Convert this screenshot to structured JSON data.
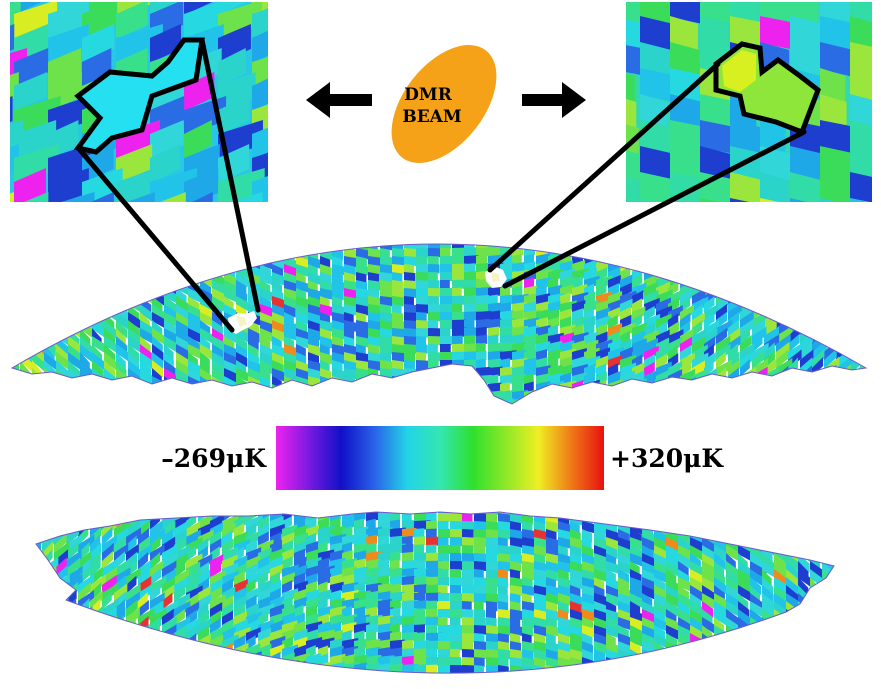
{
  "beam": {
    "label_line1": "DMR",
    "label_line2": "BEAM",
    "color": "#f5a218"
  },
  "colorbar": {
    "min_label": "–269μK",
    "max_label": "+320μK",
    "stops": [
      "#ee22ee",
      "#7a1ae0",
      "#1010c8",
      "#2a62e8",
      "#22d4e6",
      "#34e6b2",
      "#2ee02e",
      "#8ee828",
      "#f0ee22",
      "#f07a18",
      "#e81010"
    ]
  },
  "map_palette": [
    "#2a6ce4",
    "#1e3ed0",
    "#21c4e8",
    "#26d8e0",
    "#2ad4ca",
    "#31dca6",
    "#30d6d8",
    "#38e08c",
    "#3adc5a",
    "#6ee24a",
    "#9ae63c",
    "#1fa8e8"
  ],
  "map_accents": [
    "#ee22ee",
    "#d8ee22",
    "#f08a1c",
    "#e83232"
  ],
  "outline_color": "#000000",
  "highlight_color": "#ffffff"
}
